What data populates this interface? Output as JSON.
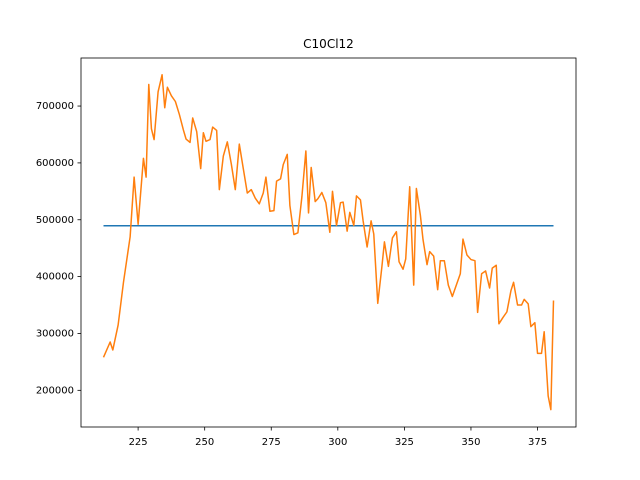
{
  "chart_data": {
    "type": "line",
    "title": "C10Cl12",
    "xlim": [
      203.55,
      389.45
    ],
    "xticks": [
      225,
      250,
      275,
      300,
      325,
      350,
      375
    ],
    "ylim": [
      135500,
      784500
    ],
    "yticks": [
      200000,
      300000,
      400000,
      500000,
      600000,
      700000
    ],
    "series": [
      {
        "color": "#1f77b4",
        "x": [
          212,
          381
        ],
        "values": [
          489500,
          489500
        ]
      },
      {
        "color": "#ff7f0e",
        "x": [
          212,
          214.5,
          215.5,
          217.5,
          219.5,
          222,
          223.5,
          225,
          227,
          228,
          229,
          230,
          231,
          232.5,
          234,
          235,
          236,
          237.5,
          239,
          240.5,
          242,
          243,
          244.5,
          245.5,
          247,
          248.5,
          249.5,
          250.5,
          252,
          253,
          254.5,
          255.5,
          257,
          258.5,
          260,
          261.5,
          263,
          264.5,
          266,
          267.5,
          269,
          270.5,
          272,
          273,
          274.5,
          276,
          277,
          278.5,
          279.5,
          281,
          282,
          283.5,
          285,
          286.5,
          288,
          289,
          290,
          291.5,
          292.5,
          294,
          295.5,
          297,
          298,
          299.5,
          301,
          302,
          303.5,
          304.5,
          306,
          307,
          308.5,
          309.5,
          311,
          312.5,
          313.5,
          315,
          316.5,
          317.5,
          319,
          320.5,
          322,
          323,
          324.5,
          325.5,
          327,
          328.5,
          329.5,
          331,
          332,
          333.5,
          334.5,
          336,
          337.5,
          338.5,
          340,
          341.5,
          343,
          344.5,
          346,
          347,
          348.5,
          350,
          351.5,
          352.5,
          354,
          355.5,
          357,
          358,
          359.5,
          360.5,
          362,
          363.5,
          365,
          366,
          367.5,
          369,
          370,
          371.5,
          372.5,
          374,
          375,
          376.5,
          377.5,
          379,
          380,
          381
        ],
        "values": [
          258000,
          285000,
          271000,
          315000,
          390000,
          470000,
          575000,
          492000,
          608000,
          575000,
          738000,
          660000,
          641000,
          725000,
          755000,
          697000,
          733000,
          718000,
          708000,
          685000,
          658000,
          642000,
          636000,
          679000,
          655000,
          590000,
          653000,
          638000,
          641000,
          663000,
          657000,
          553000,
          612000,
          637000,
          598000,
          553000,
          633000,
          590000,
          547000,
          553000,
          538000,
          528000,
          547000,
          575000,
          515000,
          516000,
          568000,
          572000,
          597000,
          615000,
          525000,
          474000,
          477000,
          540000,
          621000,
          512000,
          592000,
          532000,
          537000,
          548000,
          530000,
          478000,
          550000,
          490000,
          530000,
          531000,
          480000,
          513000,
          490000,
          542000,
          535000,
          498000,
          452000,
          498000,
          475000,
          353000,
          415000,
          461000,
          418000,
          468000,
          479000,
          426000,
          413000,
          431000,
          558000,
          385000,
          555000,
          508000,
          465000,
          421000,
          444000,
          436000,
          377000,
          428000,
          428000,
          385000,
          365000,
          385000,
          405000,
          466000,
          438000,
          430000,
          428000,
          337000,
          405000,
          410000,
          380000,
          415000,
          420000,
          317000,
          328000,
          338000,
          375000,
          390000,
          350000,
          350000,
          360000,
          352000,
          312000,
          319000,
          265000,
          265000,
          303000,
          190000,
          166000,
          358000
        ]
      }
    ]
  }
}
